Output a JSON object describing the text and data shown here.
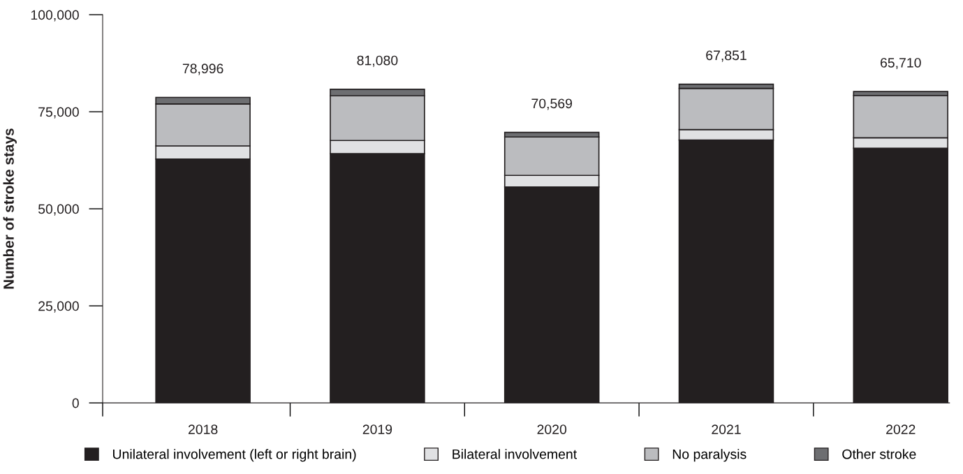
{
  "chart_data": {
    "type": "bar",
    "stacked": true,
    "ylabel": "Number of stroke stays",
    "categories": [
      "2018",
      "2019",
      "2020",
      "2021",
      "2022"
    ],
    "series": [
      {
        "name": "Unilateral involvement (left or right brain)",
        "color": "#231f20",
        "values": [
          62800,
          64200,
          55600,
          67700,
          65600
        ]
      },
      {
        "name": "Bilateral involvement",
        "color": "#e0e1e3",
        "values": [
          3400,
          3400,
          3000,
          2700,
          2700
        ]
      },
      {
        "name": "No paralysis",
        "color": "#bbbcbf",
        "values": [
          10800,
          11500,
          9900,
          10600,
          10900
        ]
      },
      {
        "name": "Other stroke",
        "color": "#6d6e71",
        "values": [
          1700,
          1700,
          1200,
          1100,
          1000
        ]
      }
    ],
    "annotations": [
      {
        "text": "78,996",
        "x": "2018",
        "y": 78700
      },
      {
        "text": "81,080",
        "x": "2019",
        "y": 80800
      },
      {
        "text": "70,569",
        "x": "2020",
        "y": 69700
      },
      {
        "text": "67,851",
        "x": "2021",
        "y": 82100
      },
      {
        "text": "65,710",
        "x": "2022",
        "y": 80200
      }
    ],
    "ylim": [
      0,
      100000
    ],
    "yticks": [
      {
        "value": 0,
        "label": "0"
      },
      {
        "value": 25000,
        "label": "25,000"
      },
      {
        "value": 50000,
        "label": "50,000"
      },
      {
        "value": 75000,
        "label": "75,000"
      },
      {
        "value": 100000,
        "label": "100,000"
      }
    ],
    "grid": false,
    "legend": "bottom"
  }
}
